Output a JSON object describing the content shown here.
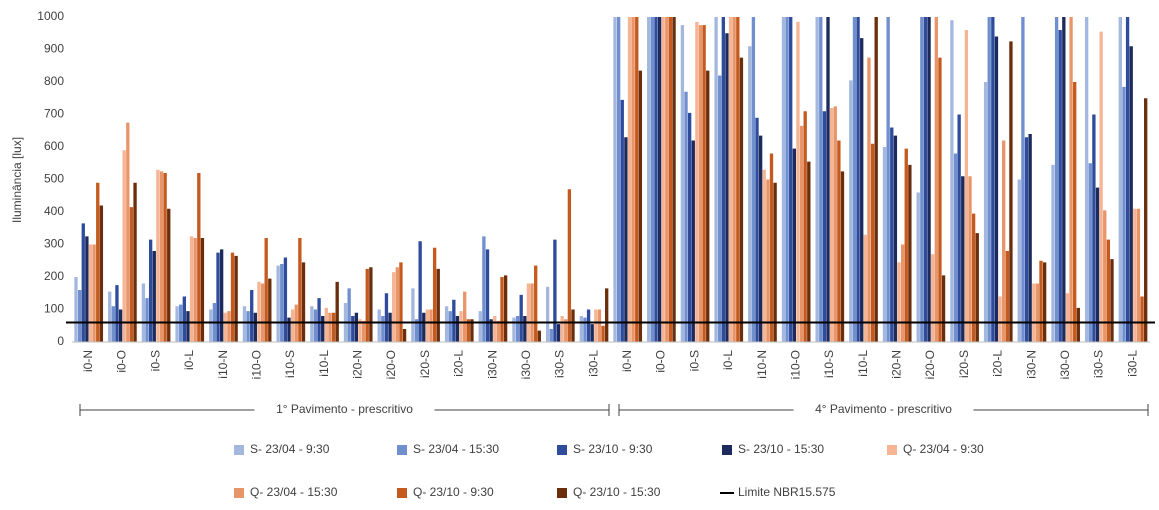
{
  "chart_data": {
    "type": "bar",
    "y_label": "Iluminância [lux]",
    "categories": [
      "i0-N",
      "i0-O",
      "i0-S",
      "i0-L",
      "i10-N",
      "i10-O",
      "i10-S",
      "i10-L",
      "i20-N",
      "i20-O",
      "i20-S",
      "i20-L",
      "i30-N",
      "i30-O",
      "i30-S",
      "i30-L",
      "i0-N",
      "i0-O",
      "i0-S",
      "i0-L",
      "i10-N",
      "i10-O",
      "i10-S",
      "i10-L",
      "i20-N",
      "i20-O",
      "i20-S",
      "i20-L",
      "i30-N",
      "i30-O",
      "i30-S",
      "i30-L"
    ],
    "groups": [
      "1° Pavimento - prescritivo",
      "4° Pavimento - prescritivo"
    ],
    "ylim": [
      0,
      1000
    ],
    "yticks": [
      0,
      100,
      200,
      300,
      400,
      500,
      600,
      700,
      800,
      900,
      1000
    ],
    "series": [
      {
        "name": "S- 23/04 - 9:30",
        "color": "#a4b7de",
        "values": [
          200,
          155,
          180,
          110,
          100,
          110,
          235,
          110,
          120,
          100,
          165,
          110,
          95,
          75,
          170,
          80,
          1000,
          1000,
          975,
          1000,
          910,
          1000,
          1000,
          805,
          600,
          460,
          990,
          800,
          500,
          545,
          1000,
          1000
        ]
      },
      {
        "name": "S- 23/04 - 15:30",
        "color": "#6f8fcf",
        "values": [
          160,
          110,
          135,
          115,
          120,
          95,
          240,
          100,
          165,
          80,
          70,
          95,
          325,
          80,
          40,
          75,
          1000,
          1000,
          770,
          820,
          1000,
          1000,
          1000,
          1000,
          1000,
          1000,
          580,
          1000,
          1000,
          1000,
          550,
          785
        ]
      },
      {
        "name": "S- 23/10 - 9:30",
        "color": "#2f4c9c",
        "values": [
          365,
          175,
          315,
          140,
          275,
          160,
          260,
          135,
          80,
          150,
          310,
          130,
          285,
          145,
          315,
          100,
          745,
          1000,
          705,
          1000,
          690,
          1000,
          710,
          1000,
          660,
          1000,
          700,
          1000,
          630,
          960,
          700,
          1000
        ]
      },
      {
        "name": "S- 23/10 - 15:30",
        "color": "#1c2a5c",
        "values": [
          325,
          100,
          280,
          95,
          285,
          90,
          75,
          80,
          90,
          90,
          90,
          80,
          70,
          80,
          55,
          55,
          630,
          1000,
          620,
          950,
          635,
          595,
          1000,
          935,
          635,
          1000,
          510,
          940,
          640,
          1000,
          475,
          910
        ]
      },
      {
        "name": "Q- 23/04 - 9:30",
        "color": "#f5b595",
        "values": [
          300,
          590,
          530,
          325,
          90,
          185,
          100,
          105,
          70,
          215,
          100,
          95,
          80,
          180,
          80,
          100,
          1000,
          1000,
          985,
          1000,
          530,
          985,
          720,
          330,
          245,
          270,
          960,
          140,
          180,
          150,
          955,
          410
        ]
      },
      {
        "name": "Q- 23/04 - 15:30",
        "color": "#e8956a",
        "values": [
          300,
          675,
          525,
          320,
          95,
          180,
          115,
          90,
          65,
          230,
          100,
          155,
          65,
          180,
          70,
          100,
          1000,
          1000,
          975,
          1000,
          500,
          665,
          725,
          875,
          300,
          1000,
          510,
          620,
          180,
          1000,
          405,
          410
        ]
      },
      {
        "name": "Q- 23/10 - 9:30",
        "color": "#c55a1e",
        "values": [
          490,
          415,
          520,
          520,
          275,
          320,
          320,
          90,
          225,
          245,
          290,
          70,
          200,
          235,
          470,
          50,
          1000,
          1000,
          975,
          1000,
          580,
          710,
          620,
          610,
          595,
          875,
          395,
          280,
          250,
          800,
          315,
          140
        ]
      },
      {
        "name": "Q- 23/10 - 15:30",
        "color": "#6b2e0c",
        "values": [
          420,
          490,
          410,
          320,
          265,
          195,
          245,
          185,
          230,
          40,
          225,
          70,
          205,
          35,
          100,
          165,
          835,
          1000,
          835,
          875,
          490,
          555,
          525,
          1000,
          545,
          205,
          335,
          925,
          245,
          105,
          255,
          750
        ]
      }
    ],
    "reference_line": {
      "name": "Limite NBR15.575",
      "value": 60,
      "color": "#000000"
    }
  }
}
